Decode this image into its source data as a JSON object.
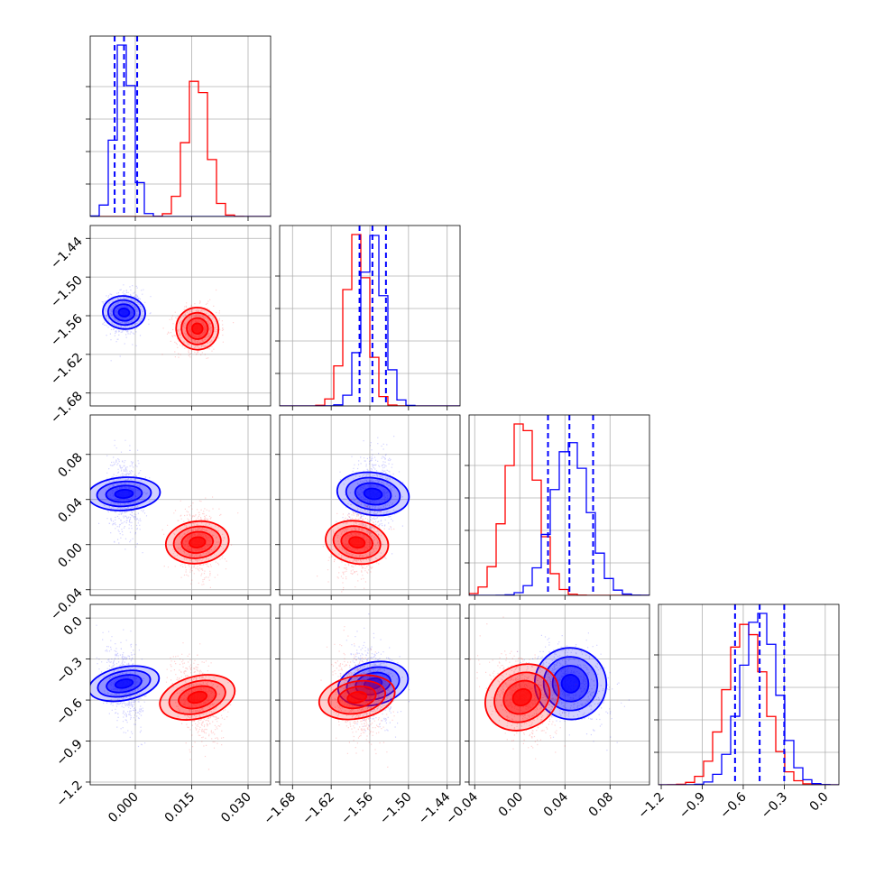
{
  "chart_data": {
    "type": "scatter",
    "title": "",
    "parameters": [
      {
        "range": [
          -0.012,
          0.036
        ],
        "ticks": [
          0.0,
          0.015,
          0.03
        ],
        "tick_labels": [
          "0.000",
          "0.015",
          "0.030"
        ]
      },
      {
        "range": [
          -1.7,
          -1.42
        ],
        "ticks": [
          -1.68,
          -1.62,
          -1.56,
          -1.5,
          -1.44
        ],
        "tick_labels": [
          "−1.68",
          "−1.62",
          "−1.56",
          "−1.50",
          "−1.44"
        ]
      },
      {
        "range": [
          -0.045,
          0.115
        ],
        "ticks": [
          -0.04,
          0.0,
          0.04,
          0.08
        ],
        "tick_labels": [
          "−0.04",
          "0.00",
          "0.04",
          "0.08"
        ]
      },
      {
        "range": [
          -1.22,
          0.1
        ],
        "ticks": [
          -1.2,
          -0.9,
          -0.6,
          -0.3,
          0.0
        ],
        "tick_labels": [
          "−1.2",
          "−0.9",
          "−0.6",
          "−0.3",
          "0.0"
        ]
      }
    ],
    "series": [
      {
        "color": "#0000ff",
        "mean": [
          -0.003,
          -1.555,
          0.045,
          -0.48
        ],
        "std": [
          0.0022,
          0.0165,
          0.016,
          0.13
        ],
        "quantiles": [
          [
            -0.0055,
            -0.003,
            0.0005
          ],
          [
            -1.576,
            -1.556,
            -1.535
          ],
          [
            0.025,
            0.044,
            0.065
          ],
          [
            -0.66,
            -0.48,
            -0.3
          ]
        ]
      },
      {
        "color": "#ff0000",
        "mean": [
          0.0165,
          -1.58,
          0.002,
          -0.58
        ],
        "std": [
          0.0028,
          0.0165,
          0.014,
          0.14
        ]
      }
    ],
    "grid": true,
    "legend": "none"
  }
}
